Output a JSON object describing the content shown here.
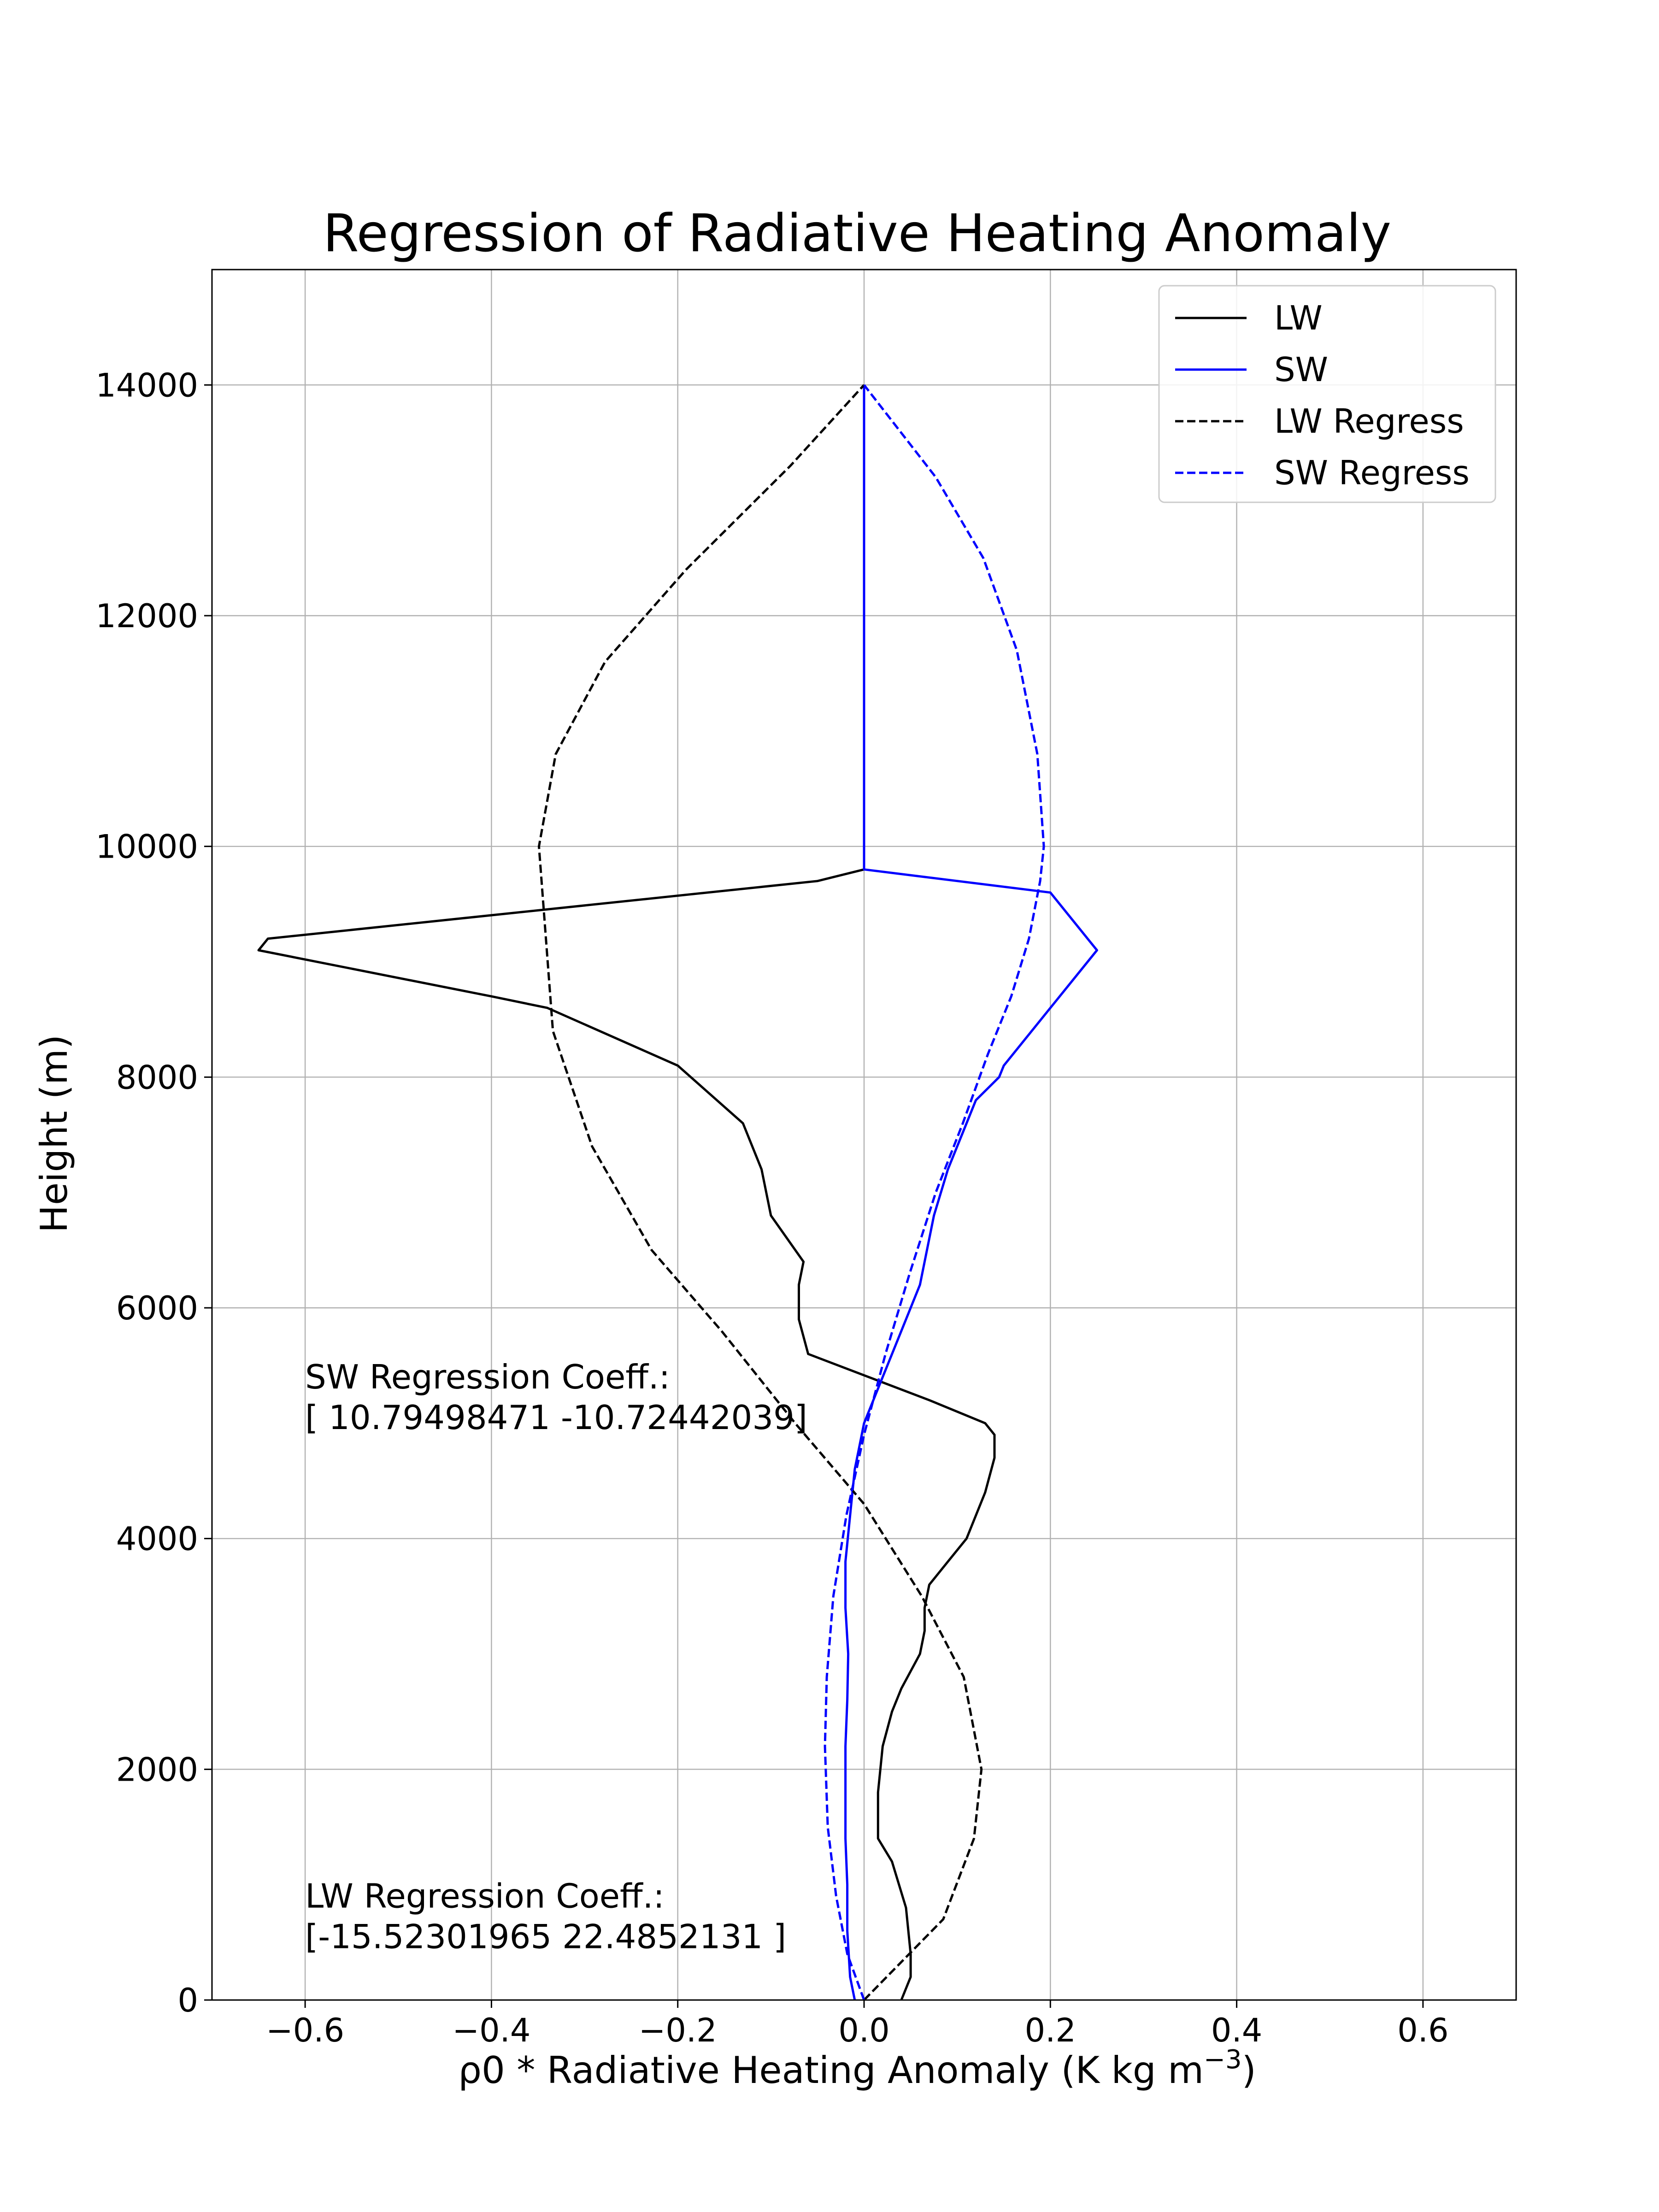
{
  "chart_data": {
    "type": "line",
    "title": "Regression of Radiative Heating Anomaly",
    "xlabel": {
      "base": "ρ0 * Radiative Heating Anomaly (K kg m",
      "sup": "−3",
      "end": ")"
    },
    "ylabel": "Height (m)",
    "xlim": [
      -0.7,
      0.7
    ],
    "ylim": [
      0,
      15000
    ],
    "xticks": [
      -0.6,
      -0.4,
      -0.2,
      0.0,
      0.2,
      0.4,
      0.6
    ],
    "xtick_labels": [
      "−0.6",
      "−0.4",
      "−0.2",
      "0.0",
      "0.2",
      "0.4",
      "0.6"
    ],
    "yticks": [
      0,
      2000,
      4000,
      6000,
      8000,
      10000,
      12000,
      14000
    ],
    "ytick_labels": [
      "0",
      "2000",
      "4000",
      "6000",
      "8000",
      "10000",
      "12000",
      "14000"
    ],
    "grid": true,
    "legend": "top-right",
    "series": [
      {
        "name": "LW",
        "color": "#000000",
        "dash": false,
        "x": [
          0.04,
          0.05,
          0.05,
          0.045,
          0.03,
          0.015,
          0.015,
          0.02,
          0.03,
          0.04,
          0.06,
          0.065,
          0.065,
          0.07,
          0.09,
          0.11,
          0.13,
          0.14,
          0.14,
          0.13,
          0.07,
          -0.06,
          -0.07,
          -0.07,
          -0.065,
          -0.1,
          -0.11,
          -0.13,
          -0.2,
          -0.34,
          -0.4,
          -0.65,
          -0.64,
          -0.05,
          0.0,
          0.0
        ],
        "y": [
          0,
          200,
          400,
          800,
          1200,
          1400,
          1800,
          2200,
          2500,
          2700,
          3000,
          3200,
          3400,
          3600,
          3800,
          4000,
          4400,
          4700,
          4900,
          5000,
          5200,
          5600,
          5900,
          6200,
          6400,
          6800,
          7200,
          7600,
          8100,
          8600,
          8700,
          9100,
          9200,
          9700,
          9800,
          14000
        ]
      },
      {
        "name": "SW",
        "color": "#0000ff",
        "dash": false,
        "x": [
          -0.01,
          -0.015,
          -0.018,
          -0.018,
          -0.02,
          -0.02,
          -0.02,
          -0.018,
          -0.017,
          -0.02,
          -0.02,
          -0.015,
          -0.01,
          0.0,
          0.02,
          0.04,
          0.06,
          0.075,
          0.09,
          0.11,
          0.12,
          0.145,
          0.15,
          0.2,
          0.25,
          0.24,
          0.2,
          0.0,
          0.0
        ],
        "y": [
          0,
          200,
          600,
          1000,
          1400,
          1800,
          2200,
          2600,
          3000,
          3400,
          3800,
          4200,
          4600,
          5000,
          5400,
          5800,
          6200,
          6800,
          7200,
          7600,
          7800,
          8000,
          8100,
          8600,
          9100,
          9200,
          9600,
          9800,
          14000
        ]
      },
      {
        "name": "LW Regress",
        "color": "#000000",
        "dash": true,
        "x": [
          0.0,
          0.085,
          0.118,
          0.126,
          0.107,
          0.062,
          0.0,
          -0.074,
          -0.153,
          -0.228,
          -0.292,
          -0.334,
          -0.349,
          -0.331,
          -0.278,
          -0.191,
          -0.079,
          0.0
        ],
        "y": [
          0,
          700,
          1400,
          2000,
          2800,
          3500,
          4300,
          5000,
          5800,
          6500,
          7400,
          8400,
          10000,
          10800,
          11600,
          12400,
          13300,
          14000
        ]
      },
      {
        "name": "SW Regress",
        "color": "#0000ff",
        "dash": true,
        "x": [
          0.0,
          -0.018,
          -0.03,
          -0.039,
          -0.042,
          -0.04,
          -0.033,
          -0.019,
          0.0,
          0.023,
          0.049,
          0.077,
          0.106,
          0.133,
          0.158,
          0.177,
          0.189,
          0.193,
          0.186,
          0.164,
          0.128,
          0.077,
          0.0
        ],
        "y": [
          0,
          400,
          900,
          1500,
          2200,
          2800,
          3500,
          4200,
          4900,
          5600,
          6300,
          7000,
          7600,
          8200,
          8700,
          9200,
          9700,
          10000,
          10800,
          11700,
          12500,
          13200,
          14000
        ]
      }
    ],
    "annotations": [
      {
        "lines": [
          "SW Regression Coeff.:",
          "[ 10.79498471 -10.72442039]"
        ],
        "x": -0.6,
        "y": 5300
      },
      {
        "lines": [
          "LW Regression Coeff.:",
          "[-15.52301965  22.4852131 ]"
        ],
        "x": -0.6,
        "y": 800
      }
    ]
  }
}
